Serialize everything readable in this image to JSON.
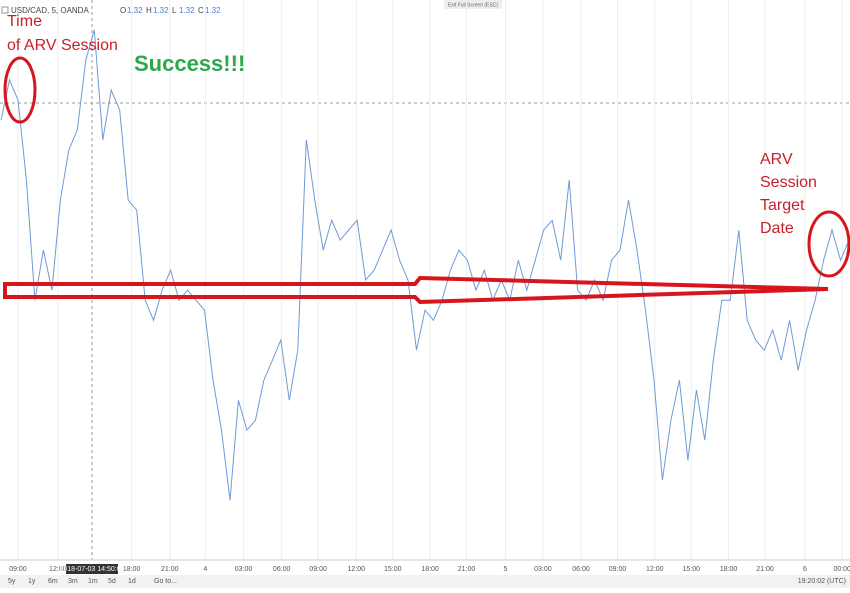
{
  "header": {
    "symbol": "USD/CAD, 5, OANDA",
    "ohlc": [
      {
        "label": "O",
        "value": 1.32
      },
      {
        "label": "H",
        "value": 1.32
      },
      {
        "label": "L",
        "value": 1.32
      },
      {
        "label": "C",
        "value": 1.32
      }
    ],
    "fullscreen_hint": "Exit Full Screen (ESC)"
  },
  "annotations": {
    "time_label": [
      "Time",
      "of ARV Session"
    ],
    "success": "Success!!!",
    "target_label": [
      "ARV",
      "Session",
      "Target",
      "Date"
    ]
  },
  "toolbar": {
    "ranges": [
      "5y",
      "1y",
      "6m",
      "3m",
      "1m",
      "5d",
      "1d"
    ],
    "goto": "Go to...",
    "clock": "19:20:02 (UTC)"
  },
  "chart_data": {
    "type": "line",
    "crosshair_label": "2018-07-03 14:50:00",
    "xlim": [
      0,
      100
    ],
    "ylim": [
      1.315,
      1.33
    ],
    "xticks": [
      {
        "value": 2,
        "label": "09:00"
      },
      {
        "value": 6.7,
        "label": "12:00"
      },
      {
        "value": 15.4,
        "label": "18:00"
      },
      {
        "value": 19.9,
        "label": "21:00"
      },
      {
        "value": 24.1,
        "label": "4"
      },
      {
        "value": 28.6,
        "label": "03:00"
      },
      {
        "value": 33.1,
        "label": "06:00"
      },
      {
        "value": 37.4,
        "label": "09:00"
      },
      {
        "value": 41.9,
        "label": "12:00"
      },
      {
        "value": 46.2,
        "label": "15:00"
      },
      {
        "value": 50.6,
        "label": "18:00"
      },
      {
        "value": 54.9,
        "label": "21:00"
      },
      {
        "value": 59.5,
        "label": "5"
      },
      {
        "value": 63.9,
        "label": "03:00"
      },
      {
        "value": 68.4,
        "label": "06:00"
      },
      {
        "value": 72.7,
        "label": "09:00"
      },
      {
        "value": 77.1,
        "label": "12:00"
      },
      {
        "value": 81.4,
        "label": "15:00"
      },
      {
        "value": 85.8,
        "label": "18:00"
      },
      {
        "value": 90.1,
        "label": "21:00"
      },
      {
        "value": 94.8,
        "label": "6"
      },
      {
        "value": 99.2,
        "label": "00:00"
      }
    ],
    "grid": true,
    "series": [
      {
        "name": "USD/CAD, 5, OANDA",
        "color": "#6f9ad8",
        "values": [
          1.32678,
          1.32786,
          1.32732,
          1.32518,
          1.32196,
          1.3233,
          1.32223,
          1.32464,
          1.32598,
          1.32652,
          1.32839,
          1.3292,
          1.32625,
          1.32759,
          1.32705,
          1.32464,
          1.32437,
          1.32196,
          1.32142,
          1.32223,
          1.32276,
          1.32196,
          1.32223,
          1.32196,
          1.32169,
          1.31982,
          1.31848,
          1.3166,
          1.31928,
          1.31848,
          1.31874,
          1.31982,
          1.32035,
          1.32089,
          1.31928,
          1.32062,
          1.32625,
          1.32464,
          1.3233,
          1.3241,
          1.32357,
          1.32384,
          1.3241,
          1.3225,
          1.32276,
          1.3233,
          1.32384,
          1.32303,
          1.3225,
          1.32062,
          1.32169,
          1.32142,
          1.32196,
          1.32276,
          1.3233,
          1.32303,
          1.32223,
          1.32276,
          1.32196,
          1.3225,
          1.32196,
          1.32303,
          1.32223,
          1.32303,
          1.32384,
          1.3241,
          1.32303,
          1.32518,
          1.32223,
          1.32196,
          1.3225,
          1.32196,
          1.32303,
          1.3233,
          1.32464,
          1.3233,
          1.32169,
          1.31982,
          1.31714,
          1.31874,
          1.31982,
          1.31767,
          1.31955,
          1.31821,
          1.32035,
          1.32196,
          1.32196,
          1.32384,
          1.32142,
          1.32089,
          1.32062,
          1.32116,
          1.32035,
          1.32142,
          1.32008,
          1.32116,
          1.32196,
          1.32303,
          1.32384,
          1.32303,
          1.32357
        ]
      }
    ]
  }
}
